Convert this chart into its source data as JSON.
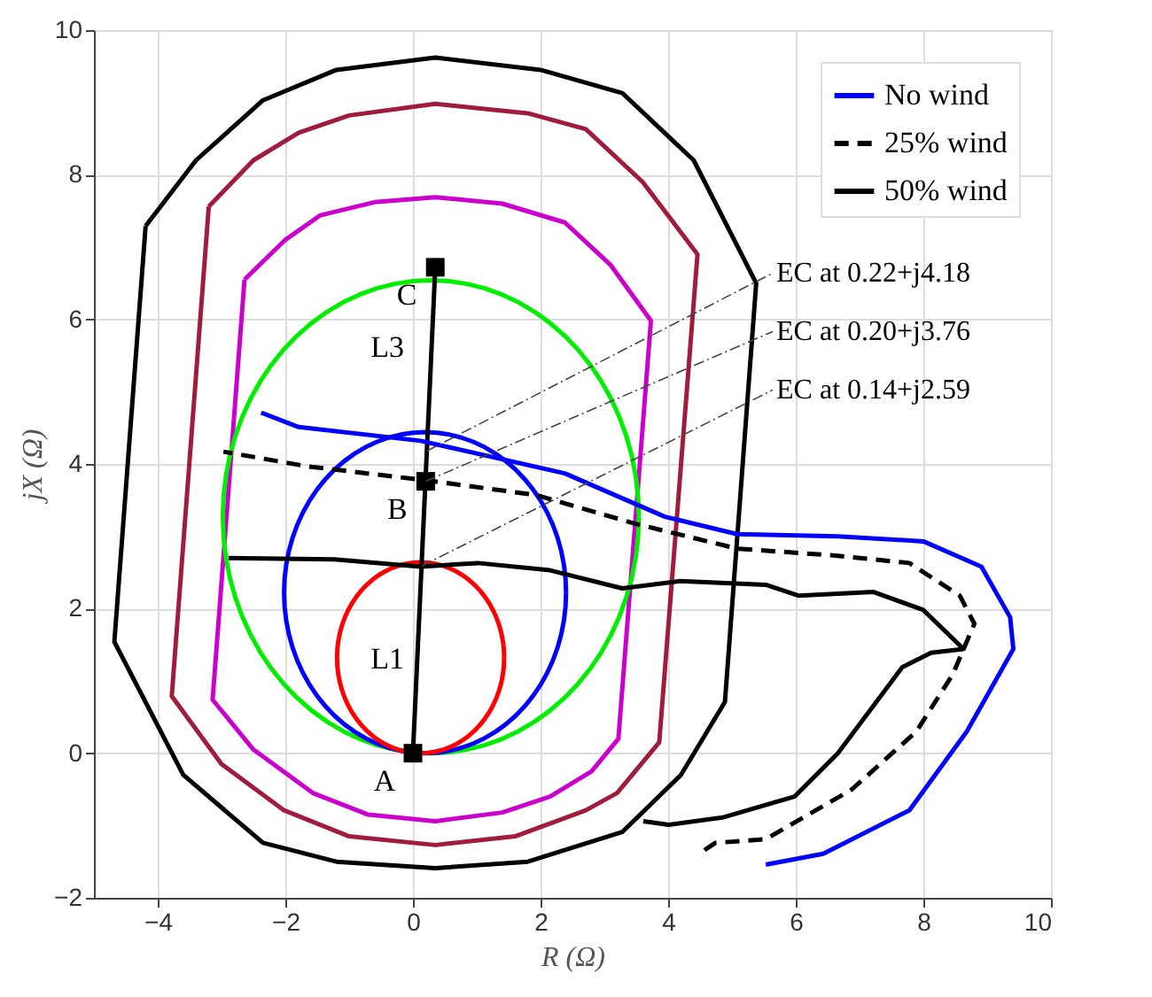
{
  "chart_data": {
    "type": "line",
    "xlabel": "R (Ω)",
    "ylabel": "jX (Ω)",
    "xlim": [
      -5,
      10
    ],
    "ylim": [
      -2,
      10
    ],
    "xticks": [
      -4,
      -2,
      0,
      2,
      4,
      6,
      8,
      10
    ],
    "yticks": [
      -2,
      0,
      2,
      4,
      6,
      8,
      10
    ],
    "grid": true,
    "legend": "top right",
    "line_style": "solid",
    "annotations": [
      "L3",
      "L1",
      {
        "text": "EC at 0.22+j4.18",
        "x": 0.22,
        "y": 4.18
      },
      {
        "text": "EC at 0.20+j3.76",
        "x": 0.2,
        "y": 3.76
      },
      {
        "text": "EC at 0.14+j2.59",
        "x": 0.14,
        "y": 2.59
      }
    ],
    "series": [
      {
        "color": "#000000",
        "x": [
          0,
          0.35
        ],
        "values": [
          0,
          6.72
        ]
      },
      {
        "name": "No wind",
        "color": "#0000ff",
        "line_style": "solid",
        "x": [
          5.53,
          6.43,
          7.78,
          8.68,
          9.41,
          9.36,
          8.91,
          8.0,
          6.66,
          5.08,
          3.95,
          2.38,
          0.12,
          -1.79,
          -2.38
        ],
        "values": [
          -1.54,
          -1.39,
          -0.79,
          0.3,
          1.44,
          1.88,
          2.58,
          2.93,
          3.0,
          3.03,
          3.27,
          3.87,
          4.32,
          4.51,
          4.71
        ]
      },
      {
        "name": "25% wind",
        "color": "#000000",
        "line_style": "dashed",
        "x": [
          4.57,
          4.74,
          5.53,
          6.88,
          7.89,
          8.46,
          8.8,
          8.57,
          7.78,
          6.66,
          5.08,
          3.5,
          1.93,
          0.24,
          -1.68,
          -2.97
        ],
        "values": [
          -1.34,
          -1.24,
          -1.19,
          -0.5,
          0.3,
          1.09,
          1.79,
          2.18,
          2.63,
          2.73,
          2.83,
          3.17,
          3.57,
          3.77,
          3.97,
          4.17
        ]
      },
      {
        "name": "50% wind",
        "color": "#000000",
        "line_style": "solid",
        "x": [
          3.61,
          4.01,
          4.85,
          5.98,
          6.66,
          7.33,
          7.67,
          8.12,
          8.63,
          8.0,
          7.22,
          6.04,
          5.53,
          4.18,
          3.28,
          2.15,
          1.02,
          0.12,
          -1.23,
          -2.89
        ],
        "values": [
          -0.94,
          -0.99,
          -0.89,
          -0.6,
          0.0,
          0.79,
          1.19,
          1.39,
          1.44,
          1.98,
          2.23,
          2.18,
          2.33,
          2.38,
          2.28,
          2.53,
          2.63,
          2.58,
          2.68,
          2.7
        ]
      },
      {
        "type": "scatter",
        "marker": "square",
        "color": "#000000",
        "x": [
          0,
          0.2,
          0.35
        ],
        "values": [
          0,
          3.76,
          6.72
        ],
        "value_labels": [
          "A",
          "B",
          "C"
        ]
      }
    ]
  }
}
